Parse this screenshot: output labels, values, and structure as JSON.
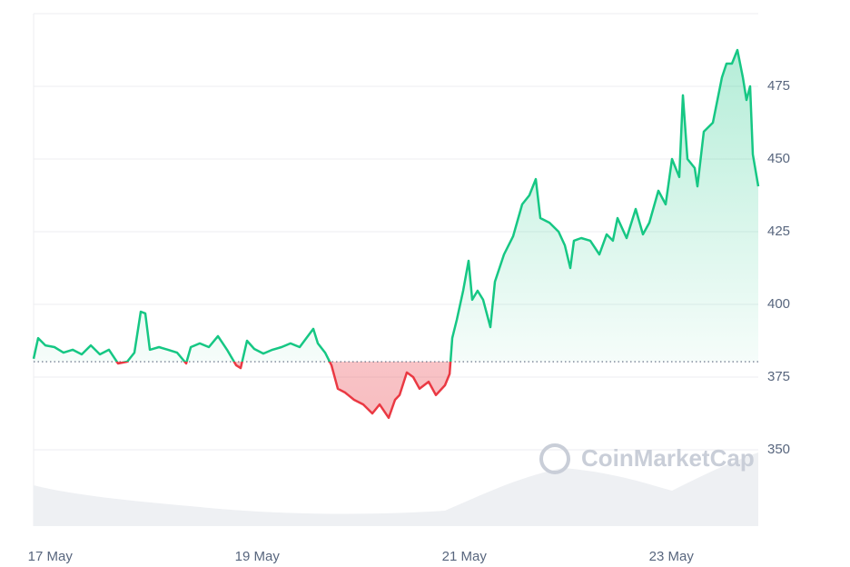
{
  "chart_data": {
    "type": "line",
    "x": [
      16.84,
      16.884,
      16.954,
      17.042,
      17.129,
      17.217,
      17.305,
      17.393,
      17.48,
      17.568,
      17.656,
      17.744,
      17.814,
      17.875,
      17.919,
      17.963,
      18.051,
      18.138,
      18.226,
      18.314,
      18.358,
      18.445,
      18.533,
      18.621,
      18.708,
      18.796,
      18.84,
      18.901,
      18.972,
      19.059,
      19.147,
      19.235,
      19.322,
      19.41,
      19.542,
      19.586,
      19.656,
      19.717,
      19.779,
      19.849,
      19.936,
      20.024,
      20.112,
      20.182,
      20.27,
      20.331,
      20.375,
      20.445,
      20.507,
      20.568,
      20.656,
      20.726,
      20.814,
      20.858,
      20.884,
      20.928,
      20.989,
      21.042,
      21.077,
      21.129,
      21.182,
      21.252,
      21.296,
      21.384,
      21.472,
      21.559,
      21.629,
      21.691,
      21.735,
      21.823,
      21.911,
      21.972,
      22.024,
      22.059,
      22.13,
      22.217,
      22.305,
      22.375,
      22.436,
      22.48,
      22.568,
      22.656,
      22.726,
      22.787,
      22.875,
      22.945,
      23.007,
      23.077,
      23.112,
      23.156,
      23.226,
      23.252,
      23.314,
      23.401,
      23.489,
      23.533,
      23.586,
      23.638,
      23.691,
      23.726,
      23.761,
      23.787,
      23.84
    ],
    "values": [
      381.3,
      388.4,
      385.9,
      385.3,
      383.4,
      384.4,
      382.8,
      385.9,
      382.8,
      384.4,
      379.7,
      380.3,
      383.4,
      397.5,
      396.9,
      384.4,
      385.3,
      384.4,
      383.4,
      379.7,
      385.3,
      386.6,
      385.3,
      389.1,
      384.4,
      379.1,
      378.1,
      387.5,
      384.7,
      383.1,
      384.4,
      385.3,
      386.6,
      385.3,
      391.6,
      386.6,
      383.4,
      379.1,
      371.0,
      369.7,
      367.2,
      365.6,
      362.5,
      365.6,
      361.0,
      367.2,
      368.8,
      376.6,
      375.0,
      371.0,
      373.4,
      368.8,
      372.2,
      376.1,
      388.4,
      394.7,
      404.7,
      415.0,
      401.6,
      404.7,
      401.6,
      392.2,
      407.8,
      417.2,
      423.4,
      434.4,
      437.5,
      443.1,
      429.7,
      428.1,
      425.0,
      420.3,
      412.5,
      421.9,
      422.8,
      421.9,
      417.2,
      424.1,
      421.9,
      429.7,
      422.8,
      432.8,
      424.1,
      428.1,
      439.1,
      434.4,
      450.0,
      443.8,
      471.9,
      450.0,
      446.9,
      440.6,
      459.4,
      462.5,
      478.1,
      482.8,
      482.8,
      487.5,
      478.1,
      470.3,
      475.0,
      451.6,
      440.6
    ],
    "baseline": 380.3,
    "up_color": "#16c784",
    "down_color": "#ea3943",
    "xlim": [
      16.84,
      23.84
    ],
    "xticks": [
      {
        "value": 17,
        "label": "17 May"
      },
      {
        "value": 19,
        "label": "19 May"
      },
      {
        "value": 21,
        "label": "21 May"
      },
      {
        "value": 23,
        "label": "23 May"
      }
    ],
    "ylim": [
      323.75,
      500
    ],
    "yticks": [
      350,
      375,
      400,
      425,
      450,
      475
    ],
    "grid": true,
    "watermark": "CoinMarketCap"
  }
}
